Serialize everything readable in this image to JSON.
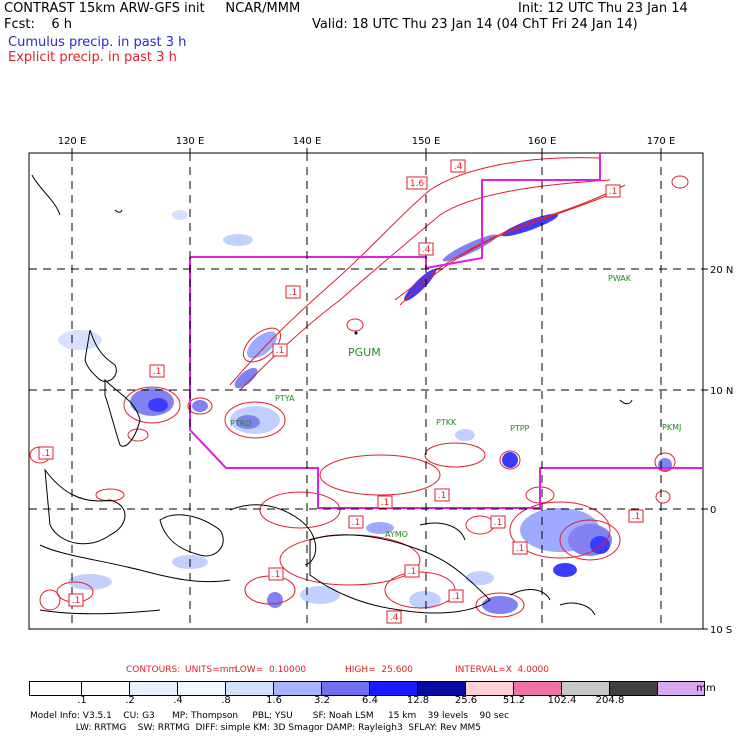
{
  "header": {
    "title_left": "CONTRAST 15km ARW-GFS init",
    "org": "NCAR/MMM",
    "init": "Init: 12 UTC Thu 23 Jan 14",
    "fcst_label": "Fcst:",
    "fcst_value": "6 h",
    "valid": "Valid: 18 UTC Thu 23 Jan 14 (04 ChT Fri 24 Jan 14)",
    "cumulus": "Cumulus precip. in past 3 h",
    "explicit": "Explicit precip. in past 3 h"
  },
  "map": {
    "lon_labels": [
      "120 E",
      "130 E",
      "140 E",
      "150 E",
      "160 E",
      "170 E"
    ],
    "lat_labels": [
      "20 N",
      "10 N",
      "0",
      "10 S"
    ],
    "stations": [
      "PWAK",
      "PGUM",
      "PTYA",
      "PTRO",
      "PTKK",
      "PTPP",
      "PKMJ",
      "AYMO"
    ],
    "contour_labels": [
      ".4",
      "1.6",
      ".1",
      ".1",
      ".4",
      ".1",
      ".1",
      ".1",
      ".1",
      ".1",
      ".1",
      ".1",
      ".1",
      ".1",
      ".1",
      ".1",
      ".4",
      ".1",
      ".1"
    ],
    "colors": {
      "coast": "#000000",
      "grid": "#000000",
      "domain_box": "#e020e0",
      "contour": "#e0202a"
    }
  },
  "contours_line": {
    "contours": "CONTOURS:",
    "units": "UNITS=mm",
    "low": "LOW=  0.10000",
    "high": "HIGH=  25.600",
    "interval": "INTERVAL=X  4.0000"
  },
  "colorbar": {
    "colors": [
      "#ffffff",
      "#e8eeff",
      "#d0dcff",
      "#eefcff",
      "#b8c8ff",
      "#8c9cff",
      "#6c6cf0",
      "#1a1aff",
      "#0a0aa0",
      "#ffd0d8",
      "#f070a8",
      "#c8c8c8",
      "#4a4a4a",
      "#b0b0b0"
    ],
    "ticks": [
      ".1",
      ".2",
      ".4",
      ".8",
      "1.6",
      "3.2",
      "6.4",
      "12.8",
      "25.6",
      "51.2",
      "102.4",
      "204.8"
    ],
    "unit": "mm"
  },
  "model_info": {
    "line1": "Model Info: V3.5.1    CU: G3      MP: Thompson     PBL: YSU       SF: Noah LSM     15 km    39 levels    90 sec",
    "line2": "                LW: RRTMG    SW: RRTMG  DIFF: simple KM: 3D Smagor DAMP: Rayleigh3  SFLAY: Rev MM5"
  }
}
